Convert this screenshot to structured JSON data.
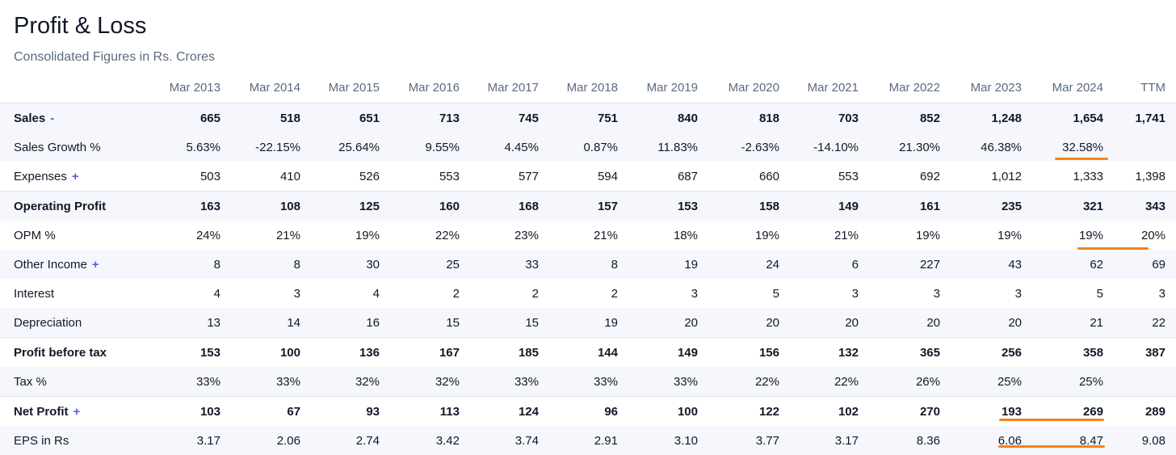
{
  "page": {
    "title": "Profit & Loss",
    "subtitle": "Consolidated Figures in Rs. Crores"
  },
  "colors": {
    "accent_toggle": "#5561e0",
    "highlight_underline": "#f5821f",
    "row_shade": "#f6f7fd",
    "header_text": "#5a6a80"
  },
  "columns": [
    "Mar 2013",
    "Mar 2014",
    "Mar 2015",
    "Mar 2016",
    "Mar 2017",
    "Mar 2018",
    "Mar 2019",
    "Mar 2020",
    "Mar 2021",
    "Mar 2022",
    "Mar 2023",
    "Mar 2024",
    "TTM"
  ],
  "rows": [
    {
      "label": "Sales",
      "toggle": "-",
      "bold": true,
      "shaded": true,
      "border": true,
      "values": [
        "665",
        "518",
        "651",
        "713",
        "745",
        "751",
        "840",
        "818",
        "703",
        "852",
        "1,248",
        "1,654",
        "1,741"
      ]
    },
    {
      "label": "Sales Growth %",
      "toggle": "",
      "bold": false,
      "shaded": true,
      "border": false,
      "values": [
        "5.63%",
        "-22.15%",
        "25.64%",
        "9.55%",
        "4.45%",
        "0.87%",
        "11.83%",
        "-2.63%",
        "-14.10%",
        "21.30%",
        "46.38%",
        "32.58%",
        ""
      ]
    },
    {
      "label": "Expenses",
      "toggle": "+",
      "bold": false,
      "shaded": false,
      "border": false,
      "values": [
        "503",
        "410",
        "526",
        "553",
        "577",
        "594",
        "687",
        "660",
        "553",
        "692",
        "1,012",
        "1,333",
        "1,398"
      ]
    },
    {
      "label": "Operating Profit",
      "toggle": "",
      "bold": true,
      "shaded": true,
      "border": true,
      "values": [
        "163",
        "108",
        "125",
        "160",
        "168",
        "157",
        "153",
        "158",
        "149",
        "161",
        "235",
        "321",
        "343"
      ]
    },
    {
      "label": "OPM %",
      "toggle": "",
      "bold": false,
      "shaded": false,
      "border": false,
      "values": [
        "24%",
        "21%",
        "19%",
        "22%",
        "23%",
        "21%",
        "18%",
        "19%",
        "21%",
        "19%",
        "19%",
        "19%",
        "20%"
      ]
    },
    {
      "label": "Other Income",
      "toggle": "+",
      "bold": false,
      "shaded": true,
      "border": false,
      "values": [
        "8",
        "8",
        "30",
        "25",
        "33",
        "8",
        "19",
        "24",
        "6",
        "227",
        "43",
        "62",
        "69"
      ]
    },
    {
      "label": "Interest",
      "toggle": "",
      "bold": false,
      "shaded": false,
      "border": false,
      "values": [
        "4",
        "3",
        "4",
        "2",
        "2",
        "2",
        "3",
        "5",
        "3",
        "3",
        "3",
        "5",
        "3"
      ]
    },
    {
      "label": "Depreciation",
      "toggle": "",
      "bold": false,
      "shaded": true,
      "border": false,
      "values": [
        "13",
        "14",
        "16",
        "15",
        "15",
        "19",
        "20",
        "20",
        "20",
        "20",
        "20",
        "21",
        "22"
      ]
    },
    {
      "label": "Profit before tax",
      "toggle": "",
      "bold": true,
      "shaded": false,
      "border": true,
      "values": [
        "153",
        "100",
        "136",
        "167",
        "185",
        "144",
        "149",
        "156",
        "132",
        "365",
        "256",
        "358",
        "387"
      ]
    },
    {
      "label": "Tax %",
      "toggle": "",
      "bold": false,
      "shaded": true,
      "border": false,
      "values": [
        "33%",
        "33%",
        "32%",
        "32%",
        "33%",
        "33%",
        "33%",
        "22%",
        "22%",
        "26%",
        "25%",
        "25%",
        ""
      ]
    },
    {
      "label": "Net Profit",
      "toggle": "+",
      "bold": true,
      "shaded": false,
      "border": true,
      "values": [
        "103",
        "67",
        "93",
        "113",
        "124",
        "96",
        "100",
        "122",
        "102",
        "270",
        "193",
        "269",
        "289"
      ]
    },
    {
      "label": "EPS in Rs",
      "toggle": "",
      "bold": false,
      "shaded": true,
      "border": false,
      "values": [
        "3.17",
        "2.06",
        "2.74",
        "3.42",
        "3.74",
        "2.91",
        "3.10",
        "3.77",
        "3.17",
        "8.36",
        "6.06",
        "8.47",
        "9.08"
      ]
    }
  ]
}
